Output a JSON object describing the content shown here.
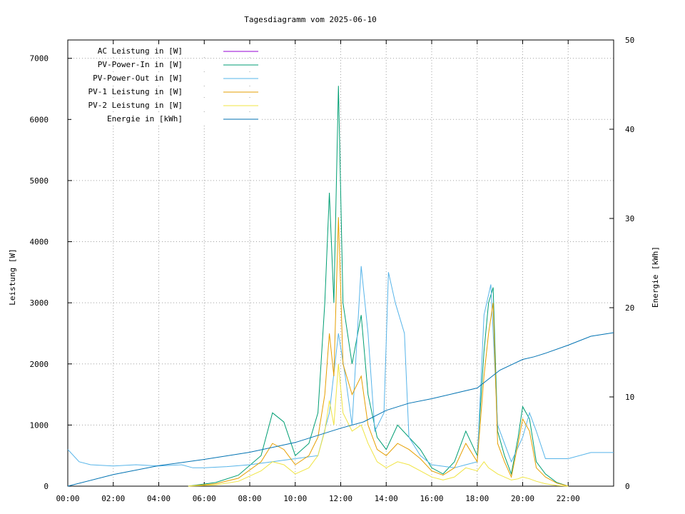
{
  "chart_data": {
    "type": "line",
    "title": "Tagesdiagramm vom 2025-06-10",
    "ylabel": "Leistung [W]",
    "y2label": "Energie [kWh]",
    "xlabel": "",
    "xlim": [
      0,
      24
    ],
    "ylim": [
      0,
      7300
    ],
    "y2lim": [
      0,
      50
    ],
    "x_ticks": [
      "00:00",
      "02:00",
      "04:00",
      "06:00",
      "08:00",
      "10:00",
      "12:00",
      "14:00",
      "16:00",
      "18:00",
      "20:00",
      "22:00"
    ],
    "y_ticks": [
      0,
      1000,
      2000,
      3000,
      4000,
      5000,
      6000,
      7000
    ],
    "y2_ticks": [
      0,
      10,
      20,
      30,
      40,
      50
    ],
    "grid": true,
    "legend_position": "top-left",
    "series": [
      {
        "name": "AC Leistung in [W]",
        "color": "#9400d3",
        "axis": "left",
        "points": []
      },
      {
        "name": "PV-Power-In in [W]",
        "color": "#009e73",
        "axis": "left",
        "points": [
          [
            5.3,
            0
          ],
          [
            6.5,
            60
          ],
          [
            7.5,
            180
          ],
          [
            8.5,
            500
          ],
          [
            9.0,
            1200
          ],
          [
            9.5,
            1050
          ],
          [
            10.0,
            500
          ],
          [
            10.6,
            700
          ],
          [
            11.0,
            1200
          ],
          [
            11.3,
            3000
          ],
          [
            11.5,
            4800
          ],
          [
            11.7,
            3000
          ],
          [
            11.9,
            6550
          ],
          [
            12.1,
            3000
          ],
          [
            12.5,
            2000
          ],
          [
            12.9,
            2800
          ],
          [
            13.2,
            1500
          ],
          [
            13.6,
            800
          ],
          [
            14.0,
            600
          ],
          [
            14.5,
            1000
          ],
          [
            15.0,
            800
          ],
          [
            15.5,
            600
          ],
          [
            16.0,
            300
          ],
          [
            16.5,
            200
          ],
          [
            17.0,
            400
          ],
          [
            17.5,
            900
          ],
          [
            18.0,
            500
          ],
          [
            18.3,
            2200
          ],
          [
            18.5,
            3000
          ],
          [
            18.7,
            3250
          ],
          [
            18.9,
            900
          ],
          [
            19.2,
            500
          ],
          [
            19.5,
            200
          ],
          [
            19.8,
            800
          ],
          [
            20.0,
            1300
          ],
          [
            20.3,
            1100
          ],
          [
            20.6,
            400
          ],
          [
            21.0,
            200
          ],
          [
            21.5,
            60
          ],
          [
            22.0,
            0
          ]
        ]
      },
      {
        "name": "PV-Power-Out in [W]",
        "color": "#56b4e9",
        "axis": "left",
        "points": [
          [
            0.0,
            600
          ],
          [
            0.5,
            400
          ],
          [
            1.0,
            350
          ],
          [
            2.0,
            330
          ],
          [
            3.0,
            350
          ],
          [
            4.0,
            330
          ],
          [
            5.0,
            350
          ],
          [
            5.5,
            300
          ],
          [
            6.0,
            300
          ],
          [
            7.0,
            320
          ],
          [
            8.0,
            350
          ],
          [
            9.0,
            400
          ],
          [
            10.0,
            450
          ],
          [
            11.0,
            500
          ],
          [
            11.5,
            1200
          ],
          [
            11.9,
            2500
          ],
          [
            12.2,
            1800
          ],
          [
            12.5,
            1000
          ],
          [
            12.9,
            3600
          ],
          [
            13.2,
            2500
          ],
          [
            13.5,
            900
          ],
          [
            13.9,
            1200
          ],
          [
            14.1,
            3500
          ],
          [
            14.4,
            3000
          ],
          [
            14.8,
            2500
          ],
          [
            15.0,
            800
          ],
          [
            15.5,
            500
          ],
          [
            16.0,
            350
          ],
          [
            17.0,
            300
          ],
          [
            17.5,
            350
          ],
          [
            18.0,
            400
          ],
          [
            18.3,
            2800
          ],
          [
            18.6,
            3300
          ],
          [
            18.9,
            1000
          ],
          [
            19.5,
            400
          ],
          [
            20.0,
            800
          ],
          [
            20.3,
            1200
          ],
          [
            20.6,
            900
          ],
          [
            21.0,
            450
          ],
          [
            22.0,
            450
          ],
          [
            23.0,
            550
          ],
          [
            24.0,
            550
          ]
        ]
      },
      {
        "name": "PV-1 Leistung in [W]",
        "color": "#e69f00",
        "axis": "left",
        "points": [
          [
            5.3,
            0
          ],
          [
            6.5,
            40
          ],
          [
            7.5,
            130
          ],
          [
            8.5,
            400
          ],
          [
            9.0,
            700
          ],
          [
            9.5,
            600
          ],
          [
            10.0,
            350
          ],
          [
            10.6,
            500
          ],
          [
            11.0,
            800
          ],
          [
            11.3,
            1500
          ],
          [
            11.5,
            2500
          ],
          [
            11.7,
            1800
          ],
          [
            11.9,
            4400
          ],
          [
            12.1,
            2000
          ],
          [
            12.5,
            1500
          ],
          [
            12.9,
            1800
          ],
          [
            13.2,
            1000
          ],
          [
            13.6,
            600
          ],
          [
            14.0,
            500
          ],
          [
            14.5,
            700
          ],
          [
            15.0,
            600
          ],
          [
            15.5,
            450
          ],
          [
            16.0,
            250
          ],
          [
            16.5,
            180
          ],
          [
            17.0,
            300
          ],
          [
            17.5,
            700
          ],
          [
            18.0,
            400
          ],
          [
            18.3,
            1800
          ],
          [
            18.5,
            2500
          ],
          [
            18.7,
            3000
          ],
          [
            18.9,
            700
          ],
          [
            19.2,
            400
          ],
          [
            19.5,
            150
          ],
          [
            19.8,
            700
          ],
          [
            20.0,
            1100
          ],
          [
            20.3,
            900
          ],
          [
            20.6,
            300
          ],
          [
            21.0,
            150
          ],
          [
            21.5,
            50
          ],
          [
            22.0,
            0
          ]
        ]
      },
      {
        "name": "PV-2 Leistung in [W]",
        "color": "#f0e442",
        "axis": "left",
        "points": [
          [
            5.3,
            0
          ],
          [
            6.5,
            20
          ],
          [
            7.5,
            80
          ],
          [
            8.5,
            250
          ],
          [
            9.0,
            400
          ],
          [
            9.5,
            350
          ],
          [
            10.0,
            200
          ],
          [
            10.6,
            300
          ],
          [
            11.0,
            500
          ],
          [
            11.3,
            900
          ],
          [
            11.5,
            1400
          ],
          [
            11.7,
            1000
          ],
          [
            11.9,
            2000
          ],
          [
            12.1,
            1200
          ],
          [
            12.5,
            900
          ],
          [
            12.9,
            1000
          ],
          [
            13.2,
            700
          ],
          [
            13.6,
            400
          ],
          [
            14.0,
            300
          ],
          [
            14.5,
            400
          ],
          [
            15.0,
            350
          ],
          [
            15.5,
            250
          ],
          [
            16.0,
            150
          ],
          [
            16.5,
            100
          ],
          [
            17.0,
            150
          ],
          [
            17.5,
            300
          ],
          [
            18.0,
            250
          ],
          [
            18.3,
            400
          ],
          [
            18.5,
            300
          ],
          [
            18.7,
            250
          ],
          [
            18.9,
            200
          ],
          [
            19.2,
            150
          ],
          [
            19.5,
            100
          ],
          [
            19.8,
            120
          ],
          [
            20.0,
            150
          ],
          [
            20.3,
            120
          ],
          [
            20.6,
            80
          ],
          [
            21.0,
            40
          ],
          [
            21.5,
            10
          ],
          [
            22.0,
            0
          ]
        ]
      },
      {
        "name": "Energie in [kWh]",
        "color": "#0072b2",
        "axis": "right",
        "points": [
          [
            0.0,
            0
          ],
          [
            2.0,
            1.3
          ],
          [
            4.0,
            2.3
          ],
          [
            6.0,
            3.0
          ],
          [
            8.0,
            3.8
          ],
          [
            10.0,
            4.9
          ],
          [
            12.0,
            6.5
          ],
          [
            13.0,
            7.2
          ],
          [
            14.0,
            8.5
          ],
          [
            15.0,
            9.3
          ],
          [
            16.0,
            9.8
          ],
          [
            17.0,
            10.4
          ],
          [
            18.0,
            11.0
          ],
          [
            18.5,
            12.0
          ],
          [
            19.0,
            13.0
          ],
          [
            20.0,
            14.2
          ],
          [
            20.5,
            14.5
          ],
          [
            21.0,
            14.9
          ],
          [
            22.0,
            15.8
          ],
          [
            23.0,
            16.8
          ],
          [
            24.0,
            17.2
          ]
        ]
      }
    ]
  }
}
